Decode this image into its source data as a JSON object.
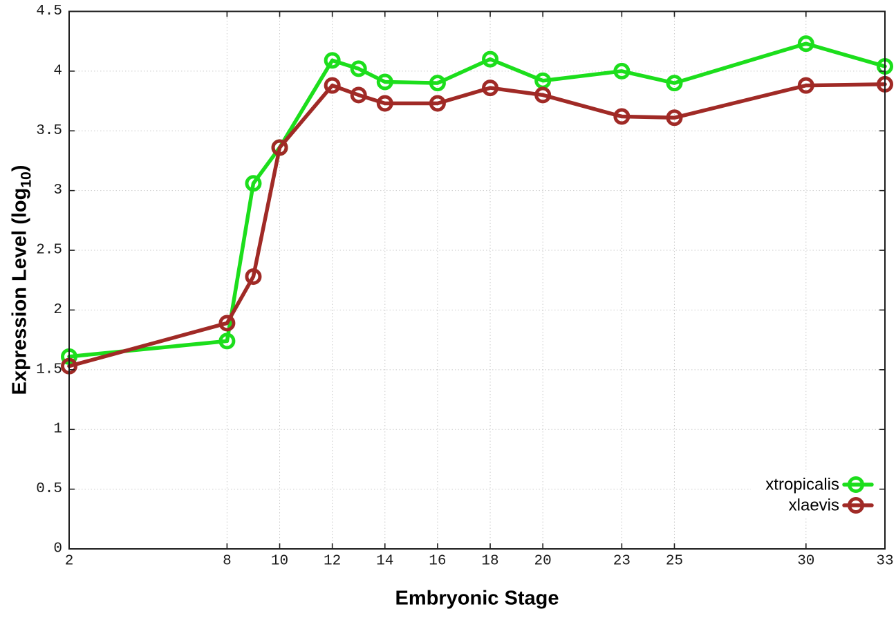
{
  "labels": {
    "xlabel": "Embryonic Stage",
    "ylabel_main": "Expression Level (log",
    "ylabel_sub": "10",
    "ylabel_close": ")"
  },
  "chart_data": {
    "type": "line",
    "title": "",
    "xlabel": "Embryonic Stage",
    "ylabel": "Expression Level (log10)",
    "xlim": [
      2,
      33
    ],
    "ylim": [
      0,
      4.5
    ],
    "grid": true,
    "legend_position": "bottom-right",
    "x": [
      2,
      8,
      9,
      10,
      12,
      13,
      14,
      16,
      18,
      20,
      23,
      25,
      30,
      33
    ],
    "xtick_labels": [
      "2",
      "8",
      "10",
      "12",
      "14",
      "16",
      "18",
      "20",
      "23",
      "25",
      "30",
      "33"
    ],
    "xtick_values": [
      2,
      8,
      10,
      12,
      14,
      16,
      18,
      20,
      23,
      25,
      30,
      33
    ],
    "ytick_labels": [
      "0",
      "0.5",
      "1",
      "1.5",
      "2",
      "2.5",
      "3",
      "3.5",
      "4",
      "4.5"
    ],
    "ytick_values": [
      0,
      0.5,
      1,
      1.5,
      2,
      2.5,
      3,
      3.5,
      4,
      4.5
    ],
    "series": [
      {
        "name": "xtropicalis",
        "color": "#1cde1c",
        "values": [
          1.61,
          1.74,
          3.06,
          3.36,
          4.09,
          4.02,
          3.91,
          3.9,
          4.1,
          3.92,
          4.0,
          3.9,
          4.23,
          4.04
        ]
      },
      {
        "name": "xlaevis",
        "color": "#a02a26",
        "values": [
          1.53,
          1.89,
          2.28,
          3.36,
          3.88,
          3.8,
          3.73,
          3.73,
          3.86,
          3.8,
          3.62,
          3.61,
          3.88,
          3.89
        ]
      }
    ],
    "colors": {
      "grid": "#c9c9c9",
      "axis": "#1c1c1c",
      "tick_text": "#1a1a1a",
      "background": "#ffffff"
    }
  }
}
